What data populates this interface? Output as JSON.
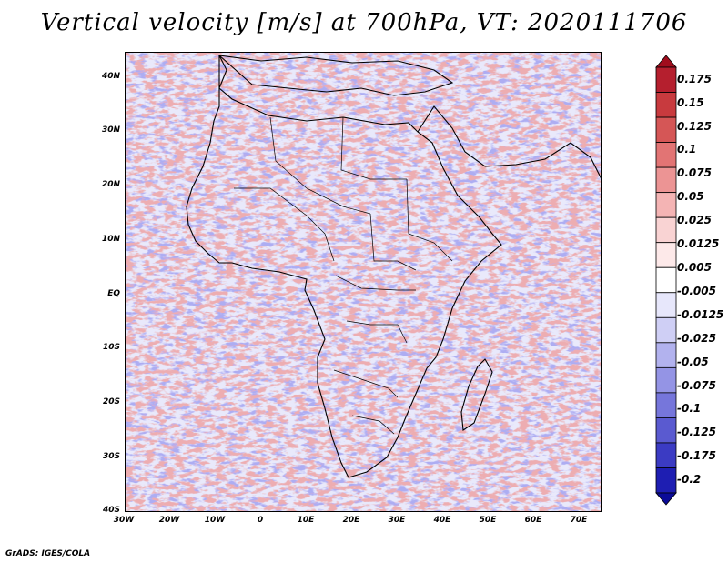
{
  "title": "Vertical velocity [m/s] at 700hPa, VT: 2020111706",
  "credit": "GrADS: IGES/COLA",
  "map": {
    "lat_labels": [
      "40N",
      "30N",
      "20N",
      "10N",
      "EQ",
      "10S",
      "20S",
      "30S",
      "40S"
    ],
    "lon_labels": [
      "30W",
      "20W",
      "10W",
      "0",
      "10E",
      "20E",
      "30E",
      "40E",
      "50E",
      "60E",
      "70E"
    ]
  },
  "colorbar": {
    "labels": [
      "0.175",
      "0.15",
      "0.125",
      "0.1",
      "0.075",
      "0.05",
      "0.025",
      "0.0125",
      "0.005",
      "-0.005",
      "-0.0125",
      "-0.025",
      "-0.05",
      "-0.075",
      "-0.1",
      "-0.125",
      "-0.175",
      "-0.2"
    ],
    "colors": [
      "#a00d1d",
      "#b51f2e",
      "#c83a3e",
      "#d55656",
      "#e27474",
      "#ec9494",
      "#f4b4b4",
      "#f9d3d3",
      "#fde9e9",
      "#ffffff",
      "#e7e7fb",
      "#cfcff5",
      "#b2b2ee",
      "#9494e5",
      "#7676db",
      "#5a5ad0",
      "#3b3bc3",
      "#1e1eb2",
      "#0b0b98"
    ]
  }
}
